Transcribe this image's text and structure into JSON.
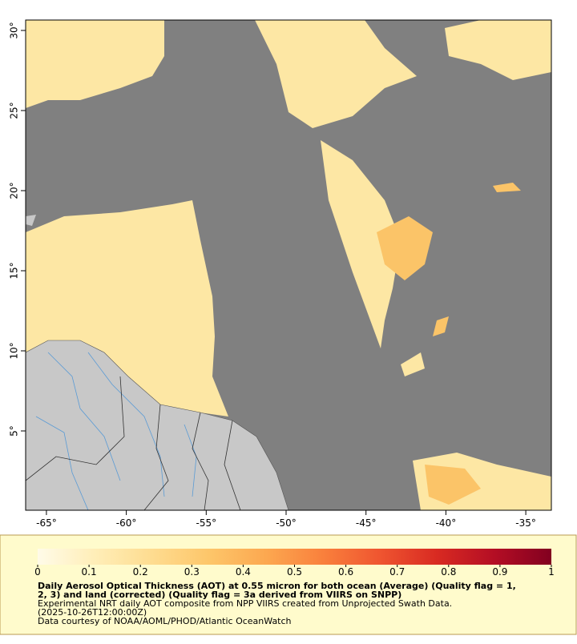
{
  "map": {
    "xlim": [
      -66.3,
      -33.4
    ],
    "ylim": [
      0.05,
      30.65
    ],
    "xticks": [
      {
        "value": -65,
        "label": "-65°"
      },
      {
        "value": -60,
        "label": "-60°"
      },
      {
        "value": -55,
        "label": "-55°"
      },
      {
        "value": -50,
        "label": "-50°"
      },
      {
        "value": -45,
        "label": "-45°"
      },
      {
        "value": -40,
        "label": "-40°"
      },
      {
        "value": -35,
        "label": "-35°"
      }
    ],
    "yticks": [
      {
        "value": 5,
        "label": "5°"
      },
      {
        "value": 10,
        "label": "10°"
      },
      {
        "value": 15,
        "label": "15°"
      },
      {
        "value": 20,
        "label": "20°"
      },
      {
        "value": 25,
        "label": "25°"
      },
      {
        "value": 30,
        "label": "30°"
      }
    ]
  },
  "colorbar": {
    "lim": [
      0,
      1
    ],
    "ticks": [
      0,
      0.1,
      0.2,
      0.3,
      0.4,
      0.5,
      0.6,
      0.7,
      0.8,
      0.9,
      1
    ],
    "colors": [
      "#fffbe8",
      "#ffeeb8",
      "#fedc90",
      "#fdc66a",
      "#fca850",
      "#f9803c",
      "#ef5530",
      "#d82a22",
      "#b40e24",
      "#820020"
    ]
  },
  "caption": {
    "title_lines": [
      "Daily Aerosol Optical Thickness (AOT) at 0.55 micron for both ocean (Average) (Quality flag = 1,",
      "2, 3) and land (corrected) (Quality flag = 3a derived from VIIRS on SNPP)"
    ],
    "lines": [
      "Experimental NRT daily AOT composite from NPP VIIRS created from Unprojected Swath Data.",
      "(2025-10-26T12:00:00Z)",
      "Data courtesy of NOAA/AOML/PHOD/Atlantic OceanWatch"
    ]
  }
}
